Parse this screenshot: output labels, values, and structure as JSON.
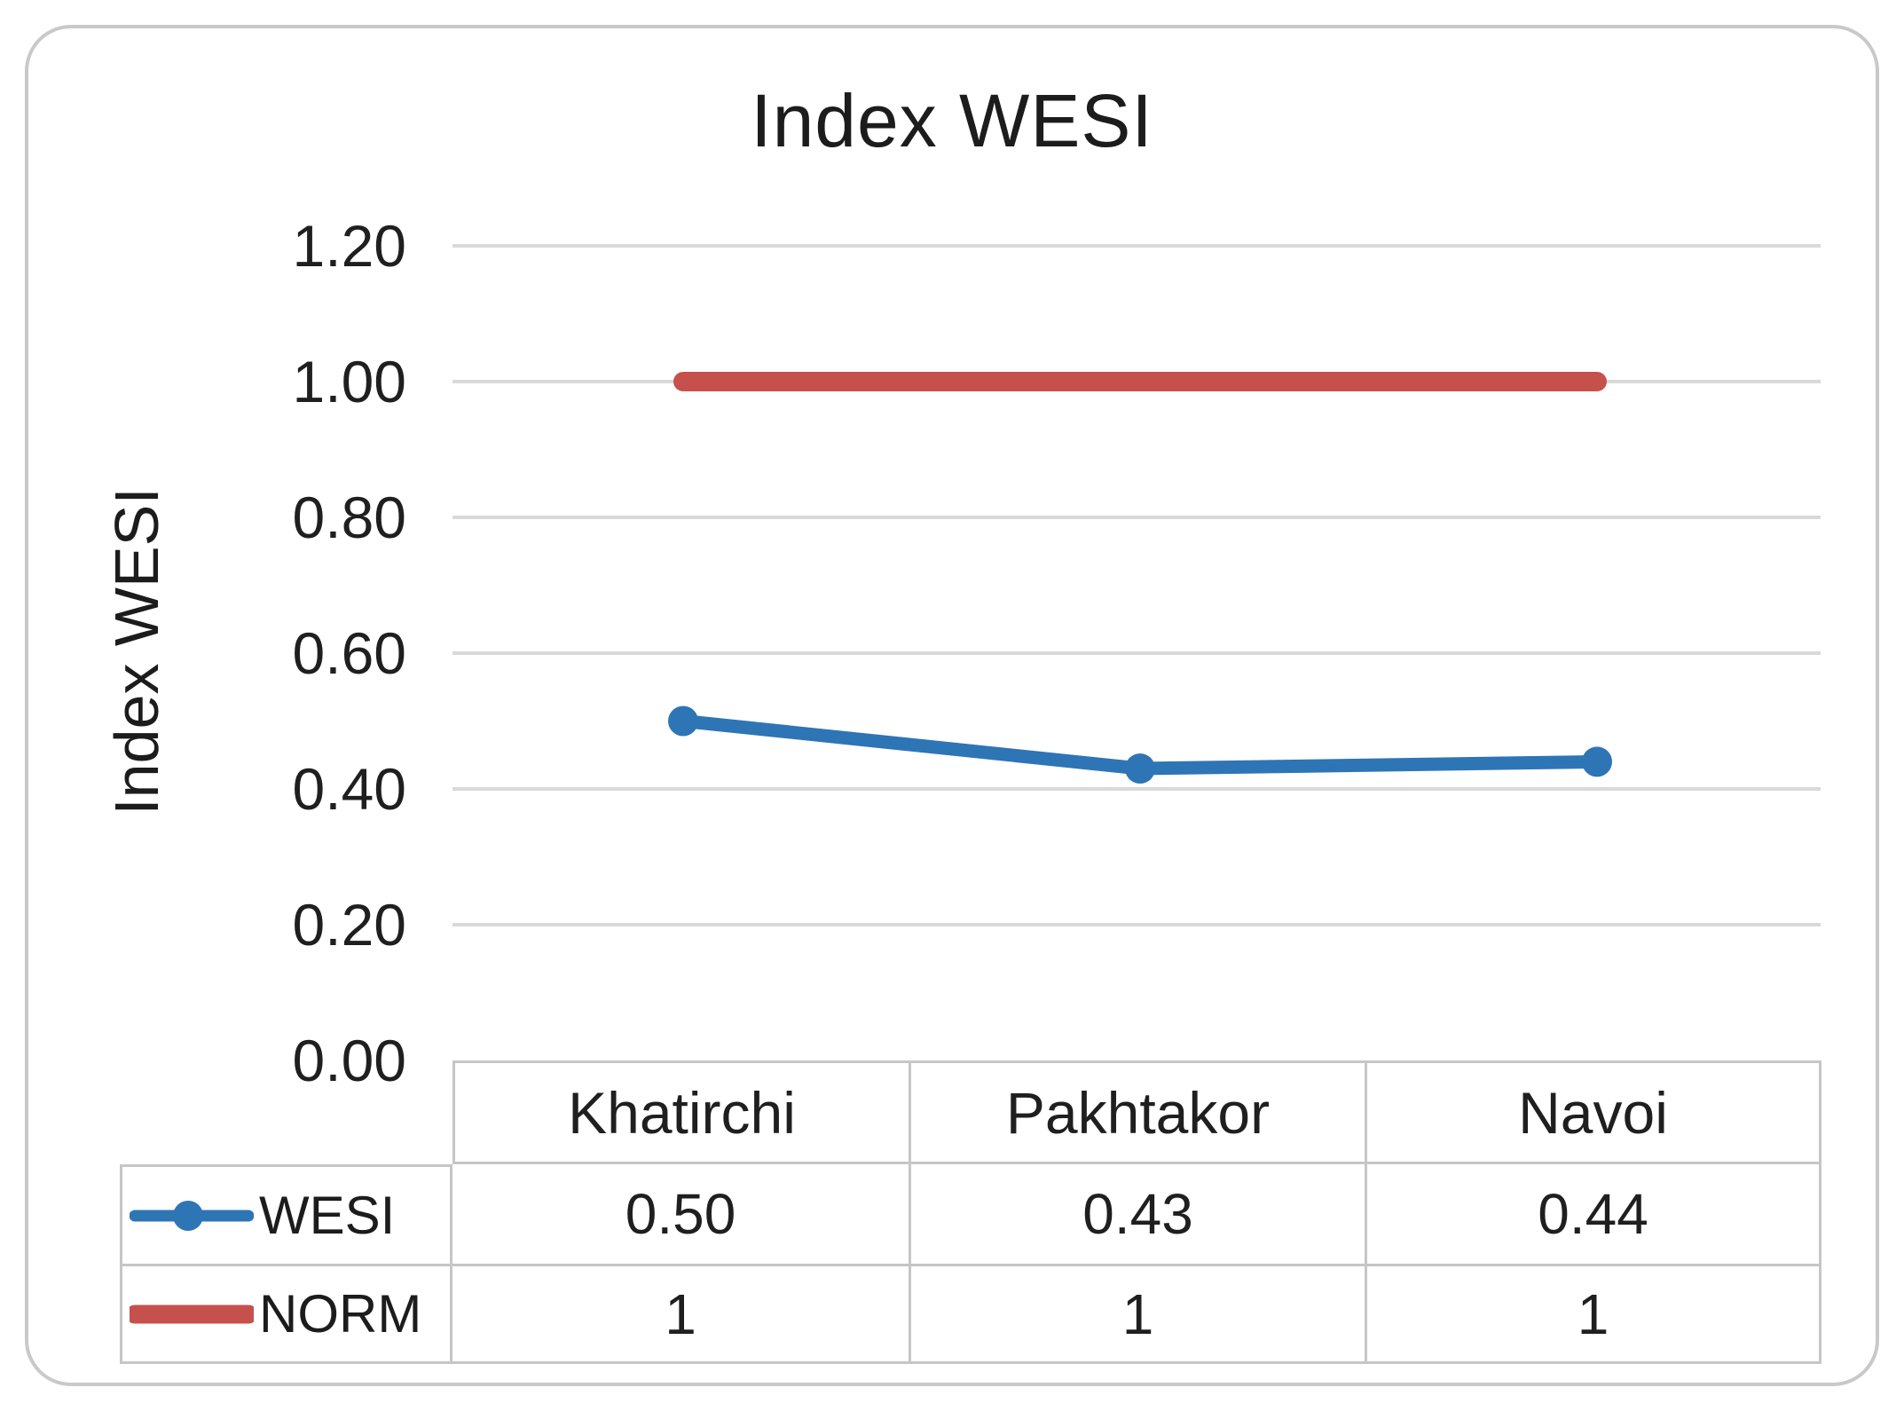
{
  "chart": {
    "title": "Index WESI",
    "y_axis_title": "Index WESI"
  },
  "chart_data": {
    "type": "line",
    "title": "Index WESI",
    "xlabel": "",
    "ylabel": "Index WESI",
    "categories": [
      "Khatirchi",
      "Pakhtakor",
      "Navoi"
    ],
    "series": [
      {
        "name": "WESI",
        "values": [
          0.5,
          0.43,
          0.44
        ],
        "color": "#2e75b6",
        "marker": "circle",
        "line_width": 15
      },
      {
        "name": "NORM",
        "values": [
          1,
          1,
          1
        ],
        "color": "#c6504c",
        "marker": "none",
        "line_width": 22
      }
    ],
    "ylim": [
      0.0,
      1.2
    ],
    "yticks": [
      "1.20",
      "1.00",
      "0.80",
      "0.60",
      "0.40",
      "0.20",
      "0.00"
    ],
    "grid": "horizontal",
    "legend_position": "data-table-left",
    "data_table": {
      "row_labels": [
        "WESI",
        "NORM"
      ],
      "column_headers": [
        "Khatirchi",
        "Pakhtakor",
        "Navoi"
      ],
      "cells": [
        [
          "0.50",
          "0.43",
          "0.44"
        ],
        [
          "1",
          "1",
          "1"
        ]
      ]
    }
  },
  "colors": {
    "wesi_blue": "#2e75b6",
    "norm_red": "#c6504c",
    "gridline": "#d9d9d9",
    "table_border": "#c6c6c6",
    "frame_border": "#c9c9c9",
    "text": "#1f1f1f",
    "background": "#ffffff"
  }
}
